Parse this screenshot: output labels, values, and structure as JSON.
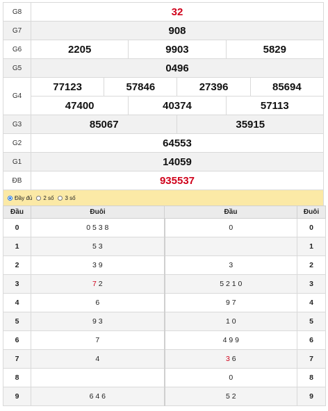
{
  "prizes": {
    "g8": {
      "label": "G8",
      "values": [
        "32"
      ]
    },
    "g7": {
      "label": "G7",
      "values": [
        "908"
      ]
    },
    "g6": {
      "label": "G6",
      "values": [
        "2205",
        "9903",
        "5829"
      ]
    },
    "g5": {
      "label": "G5",
      "values": [
        "0496"
      ]
    },
    "g4": {
      "label": "G4",
      "row1": [
        "77123",
        "57846",
        "27396",
        "85694"
      ],
      "row2": [
        "47400",
        "40374",
        "57113"
      ]
    },
    "g3": {
      "label": "G3",
      "values": [
        "85067",
        "35915"
      ]
    },
    "g2": {
      "label": "G2",
      "values": [
        "64553"
      ]
    },
    "g1": {
      "label": "G1",
      "values": [
        "14059"
      ]
    },
    "db": {
      "label": "ĐB",
      "values": [
        "935537"
      ]
    }
  },
  "options": {
    "full": "Đầy đủ",
    "two": "2 số",
    "three": "3 số",
    "selected": "full"
  },
  "loto_table": {
    "headers": [
      "Đầu",
      "Đuôi",
      "Đầu",
      "Đuôi"
    ],
    "rows": [
      {
        "head": "0",
        "tails": "0 5 3 8",
        "heads": "0",
        "tail": "0"
      },
      {
        "head": "1",
        "tails": "5 3",
        "heads": "",
        "tail": "1"
      },
      {
        "head": "2",
        "tails": "3 9",
        "heads": "3",
        "tail": "2"
      },
      {
        "head": "3",
        "tails_red": "7",
        "tails": "2",
        "heads": "5 2 1 0",
        "tail": "3"
      },
      {
        "head": "4",
        "tails": "6",
        "heads": "9 7",
        "tail": "4"
      },
      {
        "head": "5",
        "tails": "9 3",
        "heads": "1 0",
        "tail": "5"
      },
      {
        "head": "6",
        "tails": "7",
        "heads": "4 9 9",
        "tail": "6"
      },
      {
        "head": "7",
        "tails": "4",
        "heads_red": "3",
        "heads": "6",
        "tail": "7"
      },
      {
        "head": "8",
        "tails": "",
        "heads": "0",
        "tail": "8"
      },
      {
        "head": "9",
        "tails": "6 4 6",
        "heads": "5 2",
        "tail": "9"
      }
    ]
  },
  "colors": {
    "special": "#d0021b",
    "option_bar": "#fbe9a6"
  }
}
